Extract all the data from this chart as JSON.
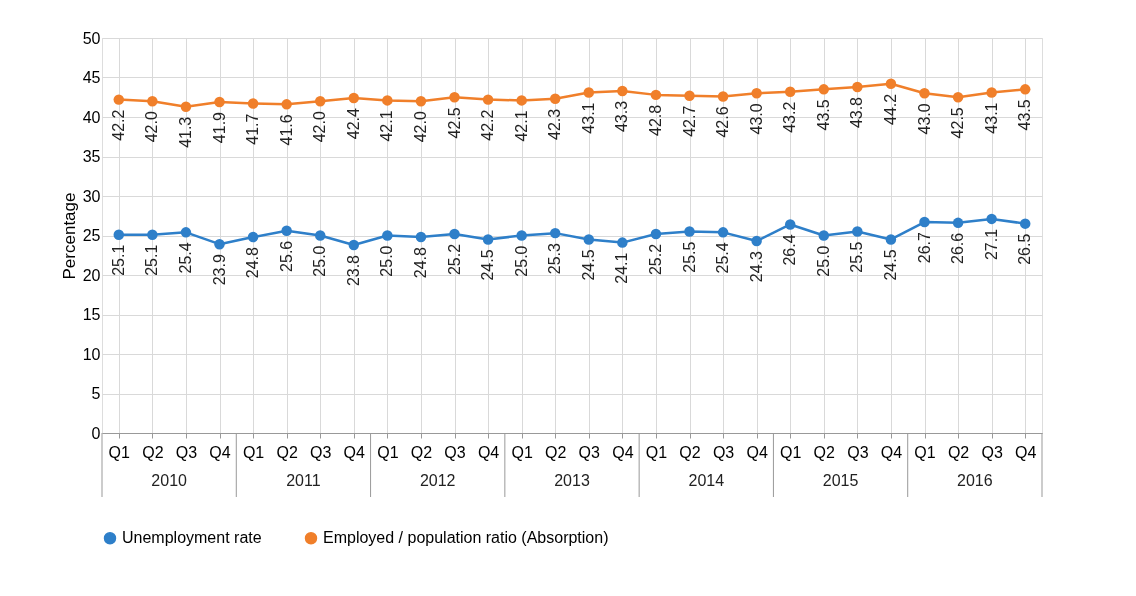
{
  "chart_data": {
    "type": "line",
    "ylabel": "Percentage",
    "categories": [
      "Q1",
      "Q2",
      "Q3",
      "Q4",
      "Q1",
      "Q2",
      "Q3",
      "Q4",
      "Q1",
      "Q2",
      "Q3",
      "Q4",
      "Q1",
      "Q2",
      "Q3",
      "Q4",
      "Q1",
      "Q2",
      "Q3",
      "Q4",
      "Q1",
      "Q2",
      "Q3",
      "Q4",
      "Q1",
      "Q2",
      "Q3",
      "Q4"
    ],
    "annotations": [
      "2010",
      "2011",
      "2012",
      "2013",
      "2014",
      "2015",
      "2016"
    ],
    "series": [
      {
        "name": "Unemployment rate",
        "color": "#2e7fc9",
        "values": [
          25.1,
          25.1,
          25.4,
          23.9,
          24.8,
          25.6,
          25.0,
          23.8,
          25.0,
          24.8,
          25.2,
          24.5,
          25.0,
          25.3,
          24.5,
          24.1,
          25.2,
          25.5,
          25.4,
          24.3,
          26.4,
          25.0,
          25.5,
          24.5,
          26.7,
          26.6,
          27.1,
          26.5
        ],
        "value_labels": [
          "25.1",
          "25.1",
          "25.4",
          "23.9",
          "24.8",
          "25.6",
          "25.0",
          "23.8",
          "25.0",
          "24.8",
          "25.2",
          "24.5",
          "25.0",
          "25.3",
          "24.5",
          "24.1",
          "25.2",
          "25.5",
          "25.4",
          "24.3",
          "26.4",
          "25.0",
          "25.5",
          "24.5",
          "26.7",
          "26.6",
          "27.1",
          "26.5"
        ]
      },
      {
        "name": "Employed / population ratio (Absorption)",
        "color": "#f07f2a",
        "values": [
          42.2,
          42.0,
          41.3,
          41.9,
          41.7,
          41.6,
          42.0,
          42.4,
          42.1,
          42.0,
          42.5,
          42.2,
          42.1,
          42.3,
          43.1,
          43.3,
          42.8,
          42.7,
          42.6,
          43.0,
          43.2,
          43.5,
          43.8,
          44.2,
          43.0,
          42.5,
          43.1,
          43.5
        ],
        "value_labels": [
          "42.2",
          "42.0",
          "41.3",
          "41.9",
          "41.7",
          "41.6",
          "42.0",
          "42.4",
          "42.1",
          "42.0",
          "42.5",
          "42.2",
          "42.1",
          "42.3",
          "43.1",
          "43.3",
          "42.8",
          "42.7",
          "42.6",
          "43.0",
          "43.2",
          "43.5",
          "43.8",
          "44.2",
          "43.0",
          "42.5",
          "43.1",
          "43.5"
        ]
      }
    ],
    "ylim": [
      0,
      50
    ],
    "yticks": [
      0,
      5,
      10,
      15,
      20,
      25,
      30,
      35,
      40,
      45,
      50
    ],
    "grid": true,
    "legend": "bottom",
    "marker": "circle",
    "line_style": "solid"
  }
}
